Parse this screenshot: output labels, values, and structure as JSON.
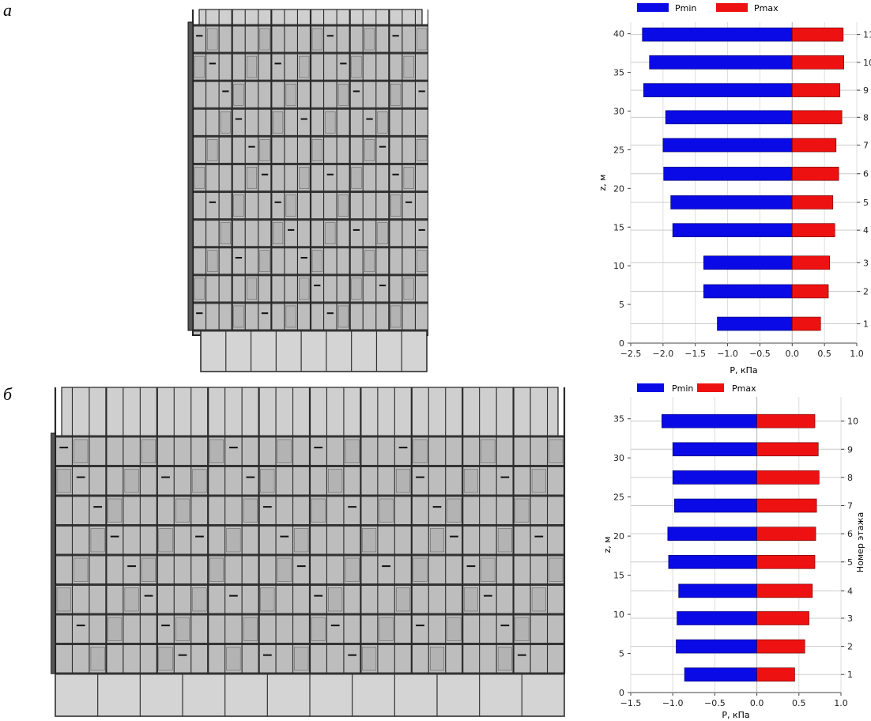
{
  "panels": [
    {
      "letter": "а"
    },
    {
      "letter": "б"
    }
  ],
  "colors": {
    "pmin": "#0a0ae6",
    "pmax": "#ee1111",
    "building_fill": "#bdbdbd",
    "building_line": "#222222"
  },
  "chart_data": [
    {
      "type": "bar",
      "orientation": "horizontal",
      "legend": [
        "Pmin",
        "Pmax"
      ],
      "legend_placement": "top",
      "xlabel": "P, кПа",
      "ylabel": "z, м",
      "y2label": "",
      "xlim": [
        -2.5,
        1.0
      ],
      "ylim": [
        0,
        41.5
      ],
      "xticks": [
        -2.5,
        -2.0,
        -1.5,
        -1.0,
        -0.5,
        0.0,
        0.5,
        1.0
      ],
      "xtick_labels": [
        "−2.5",
        "−2.0",
        "−1.5",
        "−1.0",
        "−0.5",
        "0.0",
        "0.5",
        "1.0"
      ],
      "yticks": [
        0,
        5,
        10,
        15,
        20,
        25,
        30,
        35,
        40
      ],
      "yticks_labels": [
        "0",
        "5",
        "10",
        "15",
        "20",
        "25",
        "30",
        "35",
        "40"
      ],
      "floors": [
        "1",
        "2",
        "3",
        "4",
        "5",
        "6",
        "7",
        "8",
        "9",
        "11",
        "10"
      ],
      "floor_z": [
        2.5,
        6.7,
        10.4,
        14.6,
        18.2,
        21.9,
        25.6,
        29.2,
        32.7,
        39.9,
        36.3
      ],
      "series": [
        {
          "name": "Pmin",
          "values": [
            -1.16,
            -1.37,
            -1.37,
            -1.85,
            -1.88,
            -1.99,
            -2.0,
            -1.96,
            -2.3,
            -2.32,
            -2.21
          ]
        },
        {
          "name": "Pmax",
          "values": [
            0.44,
            0.56,
            0.58,
            0.66,
            0.63,
            0.72,
            0.68,
            0.77,
            0.74,
            0.79,
            0.8
          ]
        }
      ]
    },
    {
      "type": "bar",
      "orientation": "horizontal",
      "legend": [
        "Pmin",
        "Pmax"
      ],
      "legend_placement": "top",
      "xlabel": "P, кПа",
      "ylabel": "z, м",
      "y2label": "Номер этажа",
      "xlim": [
        -1.5,
        1.0
      ],
      "ylim": [
        0,
        37.8
      ],
      "xticks": [
        -1.5,
        -1.0,
        -0.5,
        0.0,
        0.5,
        1.0
      ],
      "xtick_labels": [
        "−1.5",
        "−1.0",
        "−0.5",
        "0.0",
        "0.5",
        "1.0"
      ],
      "yticks": [
        0,
        5,
        10,
        15,
        20,
        25,
        30,
        35
      ],
      "yticks_labels": [
        "0",
        "5",
        "10",
        "15",
        "20",
        "25",
        "30",
        "35"
      ],
      "floors": [
        "1",
        "2",
        "3",
        "4",
        "5",
        "6",
        "7",
        "8",
        "9",
        "10"
      ],
      "floor_z": [
        2.3,
        5.9,
        9.5,
        13.0,
        16.7,
        20.3,
        23.9,
        27.5,
        31.1,
        34.7
      ],
      "series": [
        {
          "name": "Pmin",
          "values": [
            -0.86,
            -0.96,
            -0.95,
            -0.93,
            -1.05,
            -1.06,
            -0.98,
            -1.0,
            -1.0,
            -1.13
          ]
        },
        {
          "name": "Pmax",
          "values": [
            0.45,
            0.57,
            0.62,
            0.66,
            0.69,
            0.7,
            0.71,
            0.74,
            0.73,
            0.69
          ]
        }
      ]
    }
  ]
}
